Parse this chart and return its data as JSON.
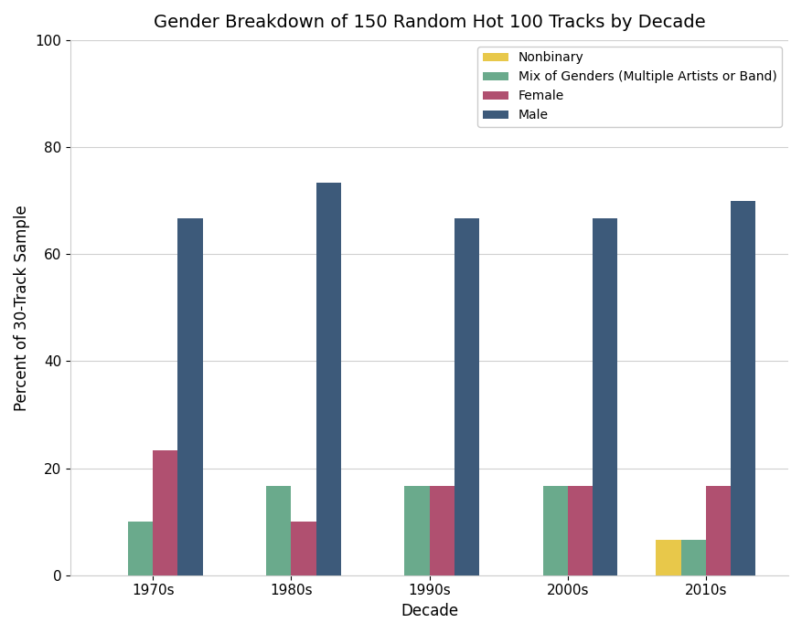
{
  "title": "Gender Breakdown of 150 Random Hot 100 Tracks by Decade",
  "xlabel": "Decade",
  "ylabel": "Percent of 30-Track Sample",
  "categories": [
    "1970s",
    "1980s",
    "1990s",
    "2000s",
    "2010s"
  ],
  "series": [
    {
      "label": "Nonbinary",
      "values": [
        0,
        0,
        0,
        0,
        6.666666666666667
      ],
      "color": "#e8c84a"
    },
    {
      "label": "Mix of Genders (Multiple Artists or Band)",
      "values": [
        10.0,
        16.666666666666668,
        16.666666666666668,
        16.666666666666668,
        6.666666666666667
      ],
      "color": "#6aaa8c"
    },
    {
      "label": "Female",
      "values": [
        23.333333333333332,
        10.0,
        16.666666666666668,
        16.666666666666668,
        16.666666666666668
      ],
      "color": "#b05070"
    },
    {
      "label": "Male",
      "values": [
        66.66666666666667,
        73.33333333333333,
        66.66666666666667,
        66.66666666666667,
        70.0
      ],
      "color": "#3d5a7a"
    }
  ],
  "ylim": [
    0,
    100
  ],
  "yticks": [
    0,
    20,
    40,
    60,
    80,
    100
  ],
  "background_color": "#ffffff",
  "plot_background_color": "#ffffff",
  "grid_color": "#d0d0d0",
  "title_fontsize": 14,
  "axis_label_fontsize": 12,
  "tick_fontsize": 11,
  "legend_fontsize": 10,
  "bar_width": 0.18
}
